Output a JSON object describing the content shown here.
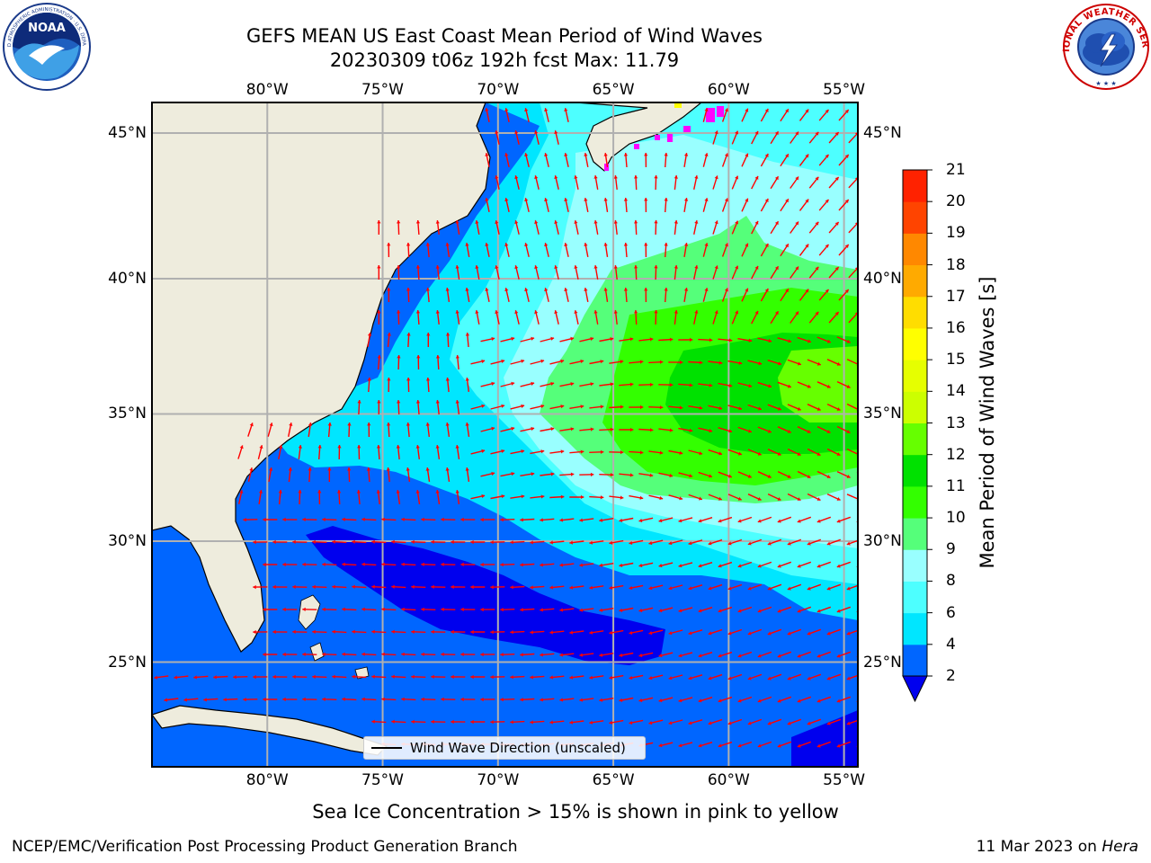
{
  "header": {
    "title_line1": "GEFS MEAN US East Coast Mean Period of Wind Waves",
    "title_line2": "20230309 t06z 192h fcst   Max: 11.79"
  },
  "logos": {
    "left": {
      "name": "NOAA",
      "ring_text": "NATIONAL OCEANIC AND ATMOSPHERIC ADMINISTRATION · U.S. DEPARTMENT OF COMMERCE"
    },
    "right": {
      "name": "NATIONAL WEATHER SERVICE"
    }
  },
  "map": {
    "lon_ticks": [
      "80°W",
      "75°W",
      "70°W",
      "65°W",
      "60°W",
      "55°W"
    ],
    "lat_ticks": [
      "45°N",
      "40°N",
      "35°N",
      "30°N",
      "25°N"
    ],
    "lon_values": [
      -80,
      -75,
      -70,
      -65,
      -60,
      -55
    ],
    "lat_values": [
      45,
      40,
      35,
      30,
      25
    ],
    "extent": {
      "lon_min": -85,
      "lon_max": -54.4,
      "lat_min": 20.5,
      "lat_max": 46
    },
    "land_color": "#eeecdd",
    "arrow_color": "#ff0000",
    "sea_ice_colors": [
      "#ff00ff",
      "#ffff00"
    ],
    "legend_label": "Wind Wave Direction (unscaled)"
  },
  "colorbar": {
    "label": "Mean Period of Wind Waves [s]",
    "levels": [
      2,
      4,
      6,
      8,
      9,
      10,
      11,
      12,
      13,
      14,
      15,
      16,
      17,
      18,
      19,
      20,
      21
    ],
    "colors": [
      "#0066ff",
      "#00e6ff",
      "#4dffff",
      "#99ffff",
      "#55ff7a",
      "#33ff00",
      "#00e100",
      "#66ff00",
      "#ccff00",
      "#e6ff00",
      "#ffff00",
      "#ffdd00",
      "#ffaa00",
      "#ff8800",
      "#ff4400",
      "#ff2200"
    ],
    "under_color": "#0000ee",
    "extend": "min"
  },
  "caption": "Sea Ice Concentration > 15% is shown in pink to yellow",
  "footer": {
    "left": "NCEP/EMC/Verification Post Processing Product Generation Branch",
    "right_date": "11 Mar 2023 on",
    "right_host": "Hera"
  }
}
